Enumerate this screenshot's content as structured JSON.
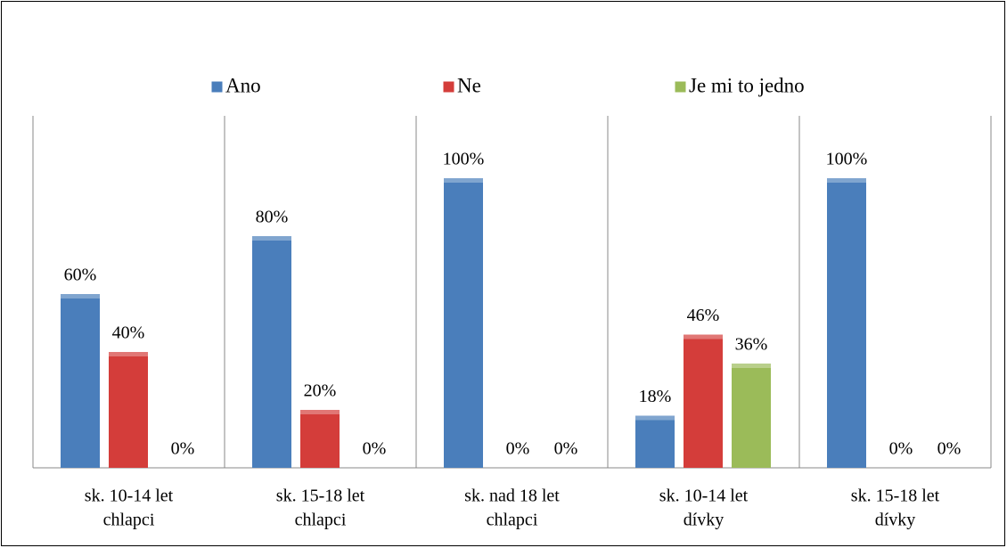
{
  "chart_data": {
    "type": "bar",
    "categories": [
      [
        "sk. 10-14 let",
        "chlapci"
      ],
      [
        "sk. 15-18 let",
        "chlapci"
      ],
      [
        "sk. nad 18 let",
        "chlapci"
      ],
      [
        "sk. 10-14 let",
        "dívky"
      ],
      [
        "sk. 15-18 let",
        "dívky"
      ]
    ],
    "series": [
      {
        "name": "Ano",
        "color": "#4a7ebb",
        "values": [
          60,
          80,
          100,
          18,
          100
        ],
        "value_labels": [
          "60%",
          "80%",
          "100%",
          "18%",
          "100%"
        ]
      },
      {
        "name": "Ne",
        "color": "#d43d3a",
        "values": [
          40,
          20,
          0,
          46,
          0
        ],
        "value_labels": [
          "40%",
          "20%",
          "0%",
          "46%",
          "0%"
        ]
      },
      {
        "name": "Je mi to jedno",
        "color": "#9bbb59",
        "values": [
          0,
          0,
          0,
          36,
          0
        ],
        "value_labels": [
          "0%",
          "0%",
          "0%",
          "36%",
          "0%"
        ]
      }
    ],
    "ylim": [
      0,
      100
    ],
    "legend": "top"
  }
}
